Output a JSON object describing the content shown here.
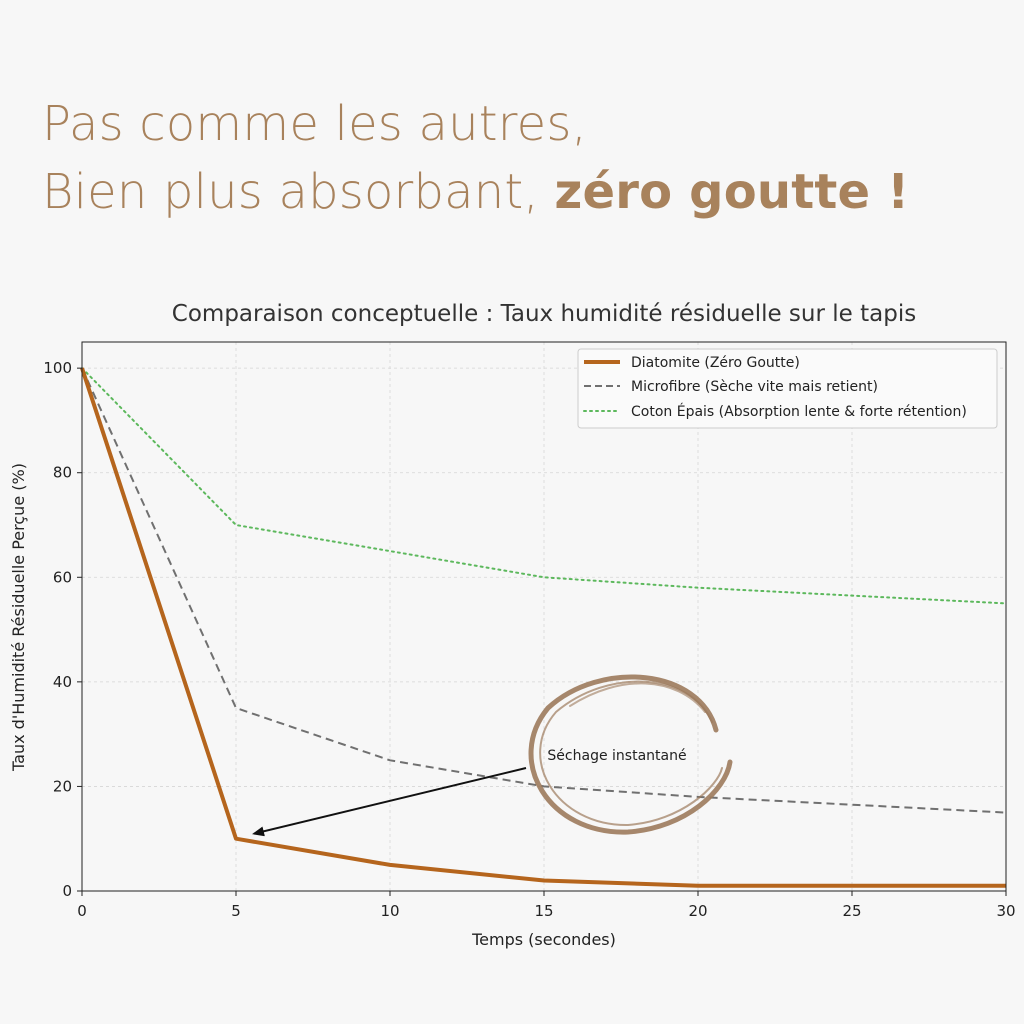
{
  "headline": {
    "line1": "Pas comme les autres,",
    "line2_regular": "Bien plus absorbant, ",
    "line2_bold": "zéro goutte !",
    "color": "#a8825c"
  },
  "chart_data": {
    "type": "line",
    "title": "Comparaison conceptuelle : Taux humidité résiduelle sur le tapis",
    "xlabel": "Temps (secondes)",
    "ylabel": "Taux d'Humidité Résiduelle Perçue (%)",
    "xlim": [
      0,
      30
    ],
    "ylim": [
      0,
      105
    ],
    "xticks": [
      0,
      5,
      10,
      15,
      20,
      25,
      30
    ],
    "yticks": [
      0,
      20,
      40,
      60,
      80,
      100
    ],
    "grid": true,
    "legend_position": "top-right",
    "series": [
      {
        "name": "Diatomite (Zéro Goutte)",
        "color": "#b5651d",
        "style": "solid",
        "x": [
          0,
          5,
          10,
          15,
          20,
          25,
          30
        ],
        "y": [
          100,
          10,
          5,
          2,
          1,
          1,
          1
        ]
      },
      {
        "name": "Microfibre (Sèche vite mais retient)",
        "color": "#707070",
        "style": "dashed",
        "x": [
          0,
          5,
          10,
          15,
          20,
          25,
          30
        ],
        "y": [
          100,
          35,
          25,
          20,
          18,
          16.5,
          15
        ]
      },
      {
        "name": "Coton Épais (Absorption lente & forte rétention)",
        "color": "#5cb85c",
        "style": "dotted",
        "x": [
          0,
          5,
          10,
          15,
          20,
          25,
          30
        ],
        "y": [
          100,
          70,
          65,
          60,
          58,
          56.5,
          55
        ]
      }
    ],
    "annotation": {
      "text": "Séchage instantané",
      "arrow_target": [
        5,
        10
      ],
      "circle_color": "#9c7a5c"
    }
  }
}
